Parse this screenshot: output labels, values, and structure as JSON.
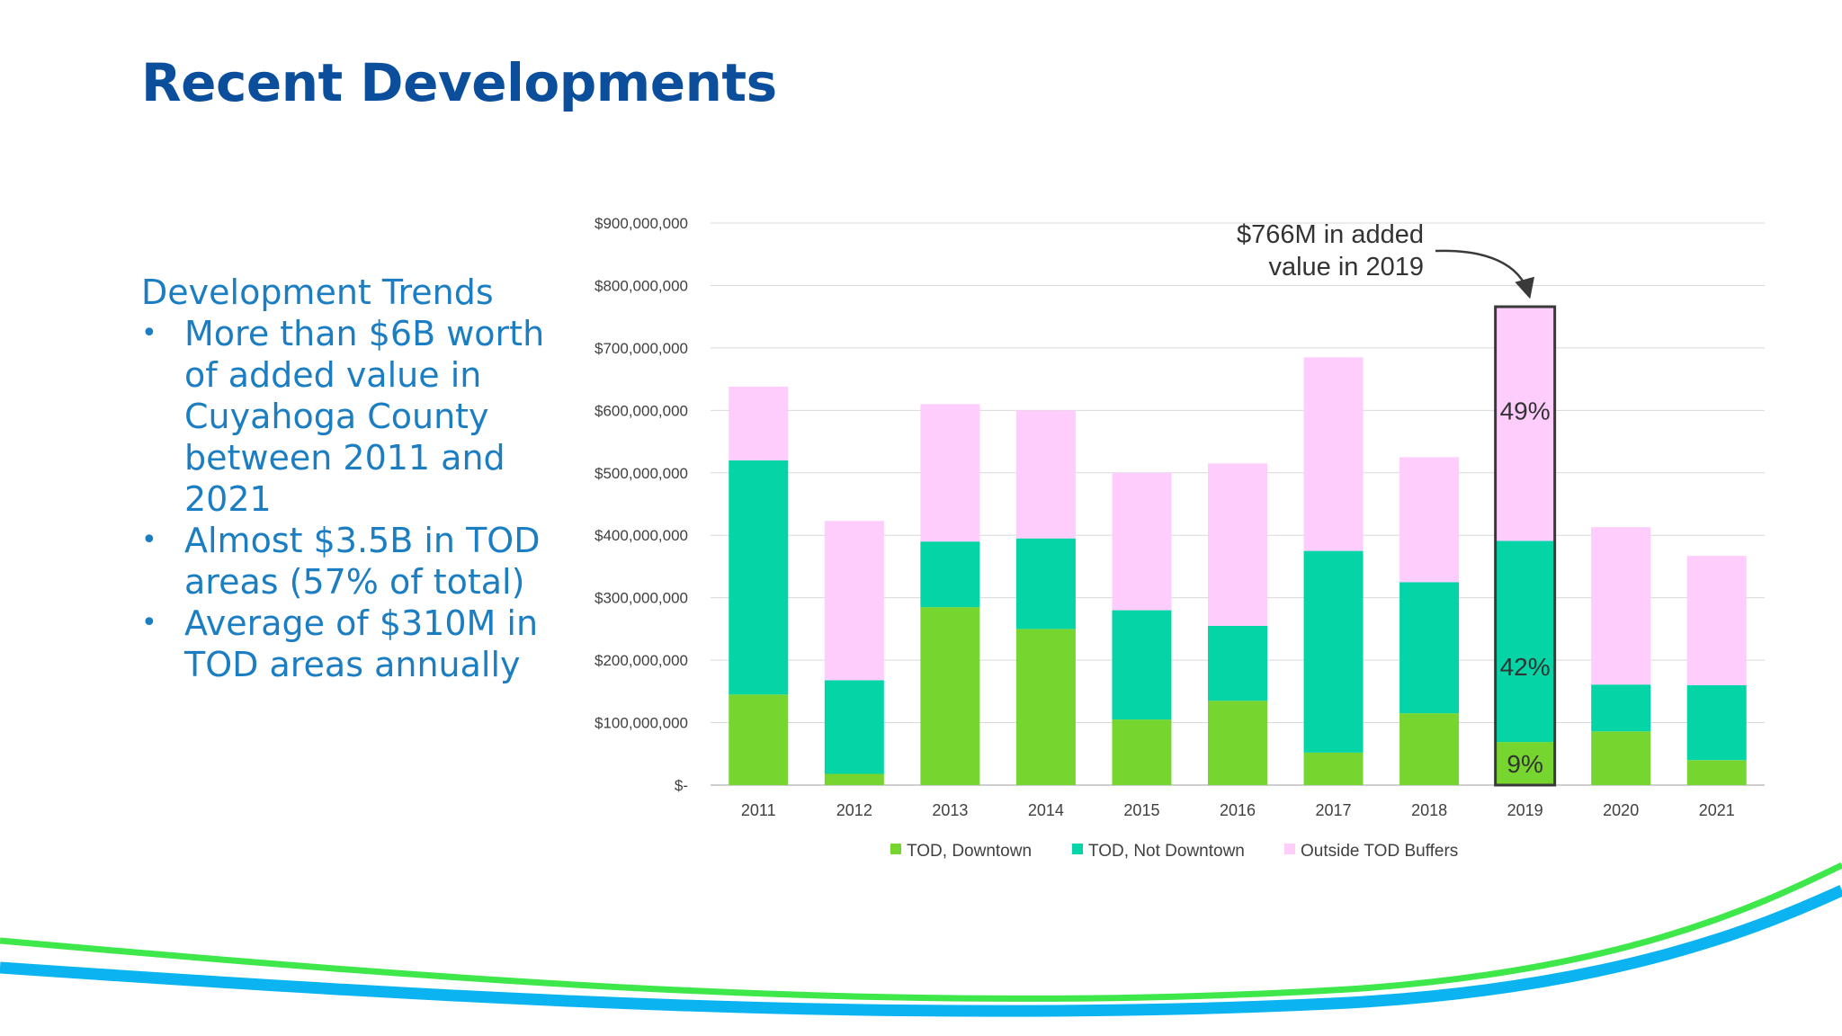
{
  "slide": {
    "title": "Recent Developments"
  },
  "trends": {
    "heading": "Development Trends",
    "bullets": [
      "More than $6B worth of added value in Cuyahoga County between 2011 and 2021",
      "Almost $3.5B in TOD areas (57% of total)",
      "Average of $310M in TOD areas annually"
    ]
  },
  "chart_data": {
    "type": "bar",
    "stacked": true,
    "categories": [
      "2011",
      "2012",
      "2013",
      "2014",
      "2015",
      "2016",
      "2017",
      "2018",
      "2019",
      "2020",
      "2021"
    ],
    "series": [
      {
        "name": "TOD, Downtown",
        "color": "#76d62f",
        "values": [
          145000000,
          18000000,
          285000000,
          250000000,
          105000000,
          135000000,
          52000000,
          115000000,
          69000000,
          86000000,
          40000000
        ]
      },
      {
        "name": "TOD, Not Downtown",
        "color": "#05d4a7",
        "values": [
          375000000,
          150000000,
          105000000,
          145000000,
          175000000,
          120000000,
          323000000,
          210000000,
          322000000,
          75000000,
          120000000
        ]
      },
      {
        "name": "Outside TOD Buffers",
        "color": "#fecdfc",
        "values": [
          118000000,
          255000000,
          220000000,
          205000000,
          220000000,
          260000000,
          310000000,
          200000000,
          375000000,
          252000000,
          207000000
        ]
      }
    ],
    "ylim": [
      0,
      900000000
    ],
    "yticks": [
      {
        "value": 0,
        "label": "$-"
      },
      {
        "value": 100000000,
        "label": "$100,000,000"
      },
      {
        "value": 200000000,
        "label": "$200,000,000"
      },
      {
        "value": 300000000,
        "label": "$300,000,000"
      },
      {
        "value": 400000000,
        "label": "$400,000,000"
      },
      {
        "value": 500000000,
        "label": "$500,000,000"
      },
      {
        "value": 600000000,
        "label": "$600,000,000"
      },
      {
        "value": 700000000,
        "label": "$700,000,000"
      },
      {
        "value": 800000000,
        "label": "$800,000,000"
      },
      {
        "value": 900000000,
        "label": "$900,000,000"
      }
    ],
    "grid": true,
    "legend_position": "bottom",
    "highlight": {
      "category": "2019",
      "annotation_lines": [
        "$766M in added",
        "value in 2019"
      ],
      "segment_labels": [
        "9%",
        "42%",
        "49%"
      ]
    },
    "title": "",
    "xlabel": "",
    "ylabel": ""
  },
  "colors": {
    "title": "#0b4f9c",
    "text_blue": "#1c7ec2",
    "grid": "#d9d9d9",
    "axis_text": "#404040",
    "highlight_border": "#3a3a3a",
    "wave_green": "#3ee84a",
    "wave_blue": "#0bb4f0"
  }
}
